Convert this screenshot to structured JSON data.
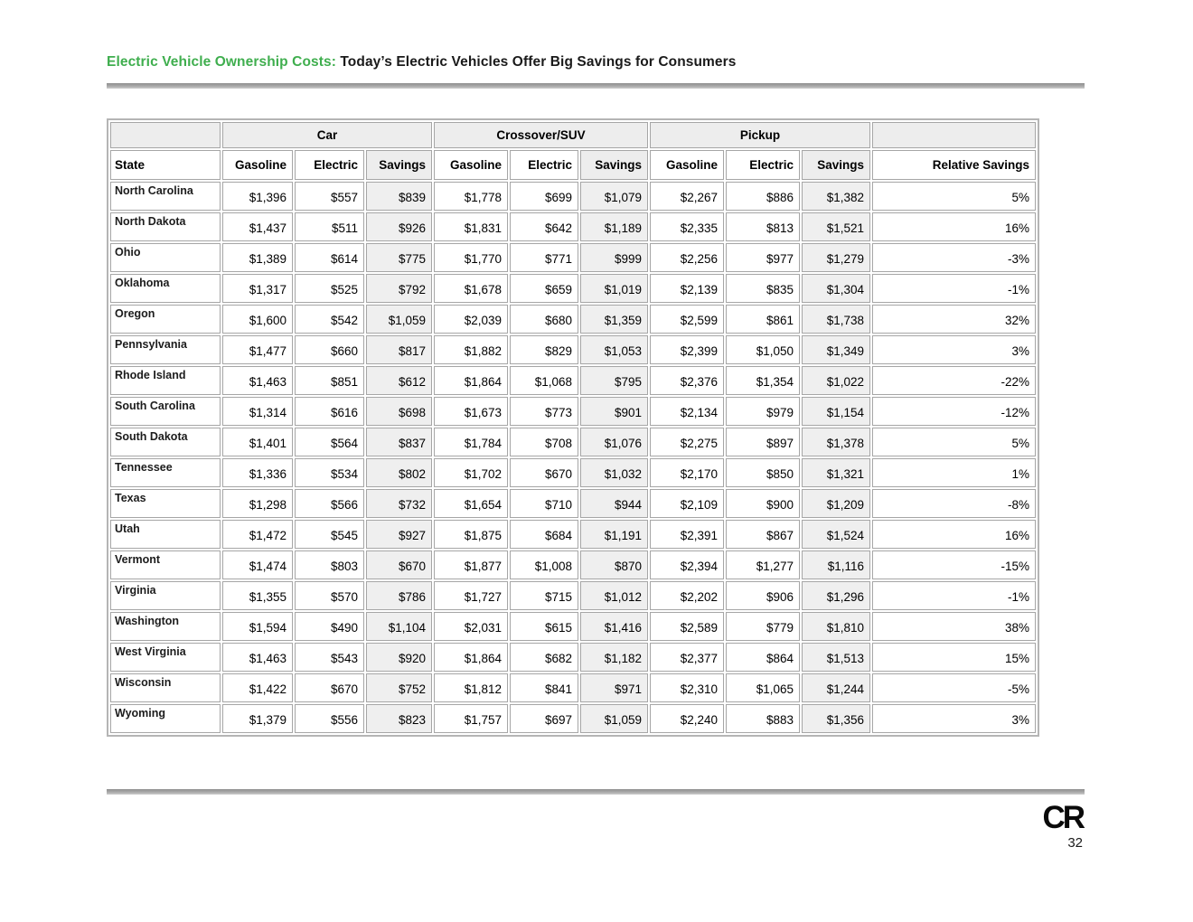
{
  "colors": {
    "title_green": "#3fae4e",
    "header_fill": "#ededed",
    "savings_fill": "#efefef",
    "cell_border": "#a6a6a6",
    "outer_border": "#b5b5b5"
  },
  "header": {
    "title_highlight": "Electric Vehicle Ownership Costs:",
    "title_rest": " Today’s Electric Vehicles Offer Big Savings for Consumers"
  },
  "footer": {
    "logo_text": "CR",
    "page_number": "32"
  },
  "table": {
    "groups": [
      {
        "label": "",
        "span": 1
      },
      {
        "label": "Car",
        "span": 3
      },
      {
        "label": "Crossover/SUV",
        "span": 3
      },
      {
        "label": "Pickup",
        "span": 3
      },
      {
        "label": "",
        "span": 1
      }
    ],
    "columns": [
      "State",
      "Gasoline",
      "Electric",
      "Savings",
      "Gasoline",
      "Electric",
      "Savings",
      "Gasoline",
      "Electric",
      "Savings",
      "Relative Savings"
    ],
    "rows": [
      {
        "state": "North Carolina",
        "car": [
          "$1,396",
          "$557",
          "$839"
        ],
        "suv": [
          "$1,778",
          "$699",
          "$1,079"
        ],
        "pickup": [
          "$2,267",
          "$886",
          "$1,382"
        ],
        "relative": "5%"
      },
      {
        "state": "North Dakota",
        "car": [
          "$1,437",
          "$511",
          "$926"
        ],
        "suv": [
          "$1,831",
          "$642",
          "$1,189"
        ],
        "pickup": [
          "$2,335",
          "$813",
          "$1,521"
        ],
        "relative": "16%"
      },
      {
        "state": "Ohio",
        "car": [
          "$1,389",
          "$614",
          "$775"
        ],
        "suv": [
          "$1,770",
          "$771",
          "$999"
        ],
        "pickup": [
          "$2,256",
          "$977",
          "$1,279"
        ],
        "relative": "-3%"
      },
      {
        "state": "Oklahoma",
        "car": [
          "$1,317",
          "$525",
          "$792"
        ],
        "suv": [
          "$1,678",
          "$659",
          "$1,019"
        ],
        "pickup": [
          "$2,139",
          "$835",
          "$1,304"
        ],
        "relative": "-1%"
      },
      {
        "state": "Oregon",
        "car": [
          "$1,600",
          "$542",
          "$1,059"
        ],
        "suv": [
          "$2,039",
          "$680",
          "$1,359"
        ],
        "pickup": [
          "$2,599",
          "$861",
          "$1,738"
        ],
        "relative": "32%"
      },
      {
        "state": "Pennsylvania",
        "car": [
          "$1,477",
          "$660",
          "$817"
        ],
        "suv": [
          "$1,882",
          "$829",
          "$1,053"
        ],
        "pickup": [
          "$2,399",
          "$1,050",
          "$1,349"
        ],
        "relative": "3%"
      },
      {
        "state": "Rhode Island",
        "car": [
          "$1,463",
          "$851",
          "$612"
        ],
        "suv": [
          "$1,864",
          "$1,068",
          "$795"
        ],
        "pickup": [
          "$2,376",
          "$1,354",
          "$1,022"
        ],
        "relative": "-22%"
      },
      {
        "state": "South Carolina",
        "car": [
          "$1,314",
          "$616",
          "$698"
        ],
        "suv": [
          "$1,673",
          "$773",
          "$901"
        ],
        "pickup": [
          "$2,134",
          "$979",
          "$1,154"
        ],
        "relative": "-12%"
      },
      {
        "state": "South Dakota",
        "car": [
          "$1,401",
          "$564",
          "$837"
        ],
        "suv": [
          "$1,784",
          "$708",
          "$1,076"
        ],
        "pickup": [
          "$2,275",
          "$897",
          "$1,378"
        ],
        "relative": "5%"
      },
      {
        "state": "Tennessee",
        "car": [
          "$1,336",
          "$534",
          "$802"
        ],
        "suv": [
          "$1,702",
          "$670",
          "$1,032"
        ],
        "pickup": [
          "$2,170",
          "$850",
          "$1,321"
        ],
        "relative": "1%"
      },
      {
        "state": "Texas",
        "car": [
          "$1,298",
          "$566",
          "$732"
        ],
        "suv": [
          "$1,654",
          "$710",
          "$944"
        ],
        "pickup": [
          "$2,109",
          "$900",
          "$1,209"
        ],
        "relative": "-8%"
      },
      {
        "state": "Utah",
        "car": [
          "$1,472",
          "$545",
          "$927"
        ],
        "suv": [
          "$1,875",
          "$684",
          "$1,191"
        ],
        "pickup": [
          "$2,391",
          "$867",
          "$1,524"
        ],
        "relative": "16%"
      },
      {
        "state": "Vermont",
        "car": [
          "$1,474",
          "$803",
          "$670"
        ],
        "suv": [
          "$1,877",
          "$1,008",
          "$870"
        ],
        "pickup": [
          "$2,394",
          "$1,277",
          "$1,116"
        ],
        "relative": "-15%"
      },
      {
        "state": "Virginia",
        "car": [
          "$1,355",
          "$570",
          "$786"
        ],
        "suv": [
          "$1,727",
          "$715",
          "$1,012"
        ],
        "pickup": [
          "$2,202",
          "$906",
          "$1,296"
        ],
        "relative": "-1%"
      },
      {
        "state": "Washington",
        "car": [
          "$1,594",
          "$490",
          "$1,104"
        ],
        "suv": [
          "$2,031",
          "$615",
          "$1,416"
        ],
        "pickup": [
          "$2,589",
          "$779",
          "$1,810"
        ],
        "relative": "38%"
      },
      {
        "state": "West Virginia",
        "car": [
          "$1,463",
          "$543",
          "$920"
        ],
        "suv": [
          "$1,864",
          "$682",
          "$1,182"
        ],
        "pickup": [
          "$2,377",
          "$864",
          "$1,513"
        ],
        "relative": "15%"
      },
      {
        "state": "Wisconsin",
        "car": [
          "$1,422",
          "$670",
          "$752"
        ],
        "suv": [
          "$1,812",
          "$841",
          "$971"
        ],
        "pickup": [
          "$2,310",
          "$1,065",
          "$1,244"
        ],
        "relative": "-5%"
      },
      {
        "state": "Wyoming",
        "car": [
          "$1,379",
          "$556",
          "$823"
        ],
        "suv": [
          "$1,757",
          "$697",
          "$1,059"
        ],
        "pickup": [
          "$2,240",
          "$883",
          "$1,356"
        ],
        "relative": "3%"
      }
    ]
  }
}
